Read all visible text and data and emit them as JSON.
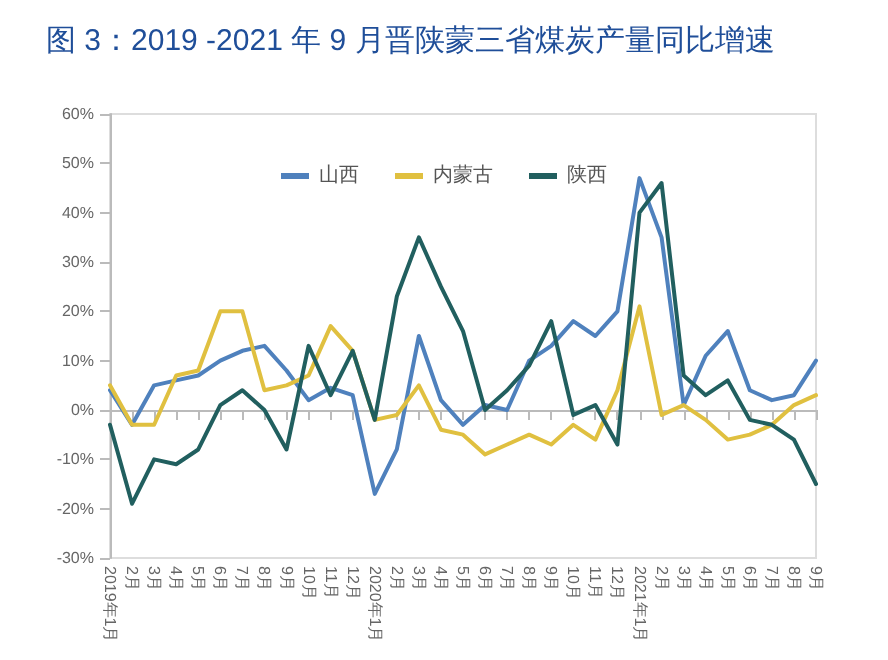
{
  "chart_data": {
    "type": "line",
    "title": "图 3：2019 -2021 年 9 月晋陕蒙三省煤炭产量同比增速",
    "categories": [
      "2019年1月",
      "2月",
      "3月",
      "4月",
      "5月",
      "6月",
      "7月",
      "8月",
      "9月",
      "10月",
      "11月",
      "12月",
      "2020年1月",
      "2月",
      "3月",
      "4月",
      "5月",
      "6月",
      "7月",
      "8月",
      "9月",
      "10月",
      "11月",
      "12月",
      "2021年1月",
      "2月",
      "3月",
      "4月",
      "5月",
      "6月",
      "7月",
      "8月",
      "9月"
    ],
    "series": [
      {
        "name": "山西",
        "color": "#4f81bd",
        "values": [
          4,
          -3,
          5,
          6,
          7,
          10,
          12,
          13,
          8,
          2,
          4.5,
          3,
          -17,
          -8,
          15,
          2,
          -3,
          1,
          0,
          10,
          13,
          18,
          15,
          20,
          47,
          35,
          1,
          11,
          16,
          4,
          2,
          3,
          10
        ]
      },
      {
        "name": "内蒙古",
        "color": "#e0c040",
        "values": [
          5,
          -3,
          -3,
          7,
          8,
          20,
          20,
          4,
          5,
          7,
          17,
          12,
          -2,
          -1,
          5,
          -4,
          -5,
          -9,
          -7,
          -5,
          -7,
          -3,
          -6,
          4,
          21,
          -1,
          1,
          -2,
          -6,
          -5,
          -3,
          1,
          3
        ]
      },
      {
        "name": "陕西",
        "color": "#215f5f",
        "values": [
          -3,
          -19,
          -10,
          -11,
          -8,
          1,
          4,
          0,
          -8,
          13,
          3,
          12,
          -2,
          23,
          35,
          25,
          16,
          0,
          4,
          9,
          18,
          -1,
          1,
          -7,
          40,
          46,
          7,
          3,
          6,
          -2,
          -3,
          -6,
          -15
        ]
      }
    ],
    "ylim": [
      -30,
      60
    ],
    "yticks": [
      {
        "value": -30,
        "label": "-30%"
      },
      {
        "value": -20,
        "label": "-20%"
      },
      {
        "value": -10,
        "label": "-10%"
      },
      {
        "value": 0,
        "label": "0%"
      },
      {
        "value": 10,
        "label": "10%"
      },
      {
        "value": 20,
        "label": "20%"
      },
      {
        "value": 30,
        "label": "30%"
      },
      {
        "value": 40,
        "label": "40%"
      },
      {
        "value": 50,
        "label": "50%"
      },
      {
        "value": 60,
        "label": "60%"
      }
    ],
    "legend": "top",
    "marker": "none",
    "line_style": "solid"
  }
}
